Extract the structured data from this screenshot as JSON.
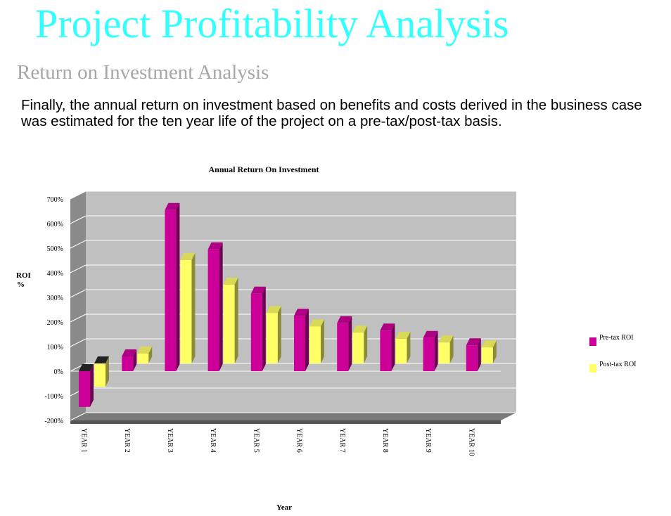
{
  "slide": {
    "title": "Project Profitability Analysis",
    "subtitle": "Return on Investment Analysis",
    "body": "Finally, the annual return on investment based on benefits and costs  derived in the business case was estimated for the ten year life of the project on a pre-tax/post-tax basis."
  },
  "chart_data": {
    "type": "bar",
    "title": "Annual Return On Investment",
    "xlabel": "Year",
    "ylabel": "ROI\n%",
    "categories": [
      "YEAR 1",
      "YEAR 2",
      "YEAR 3",
      "YEAR 4",
      "YEAR 5",
      "YEAR 6",
      "YEAR 7",
      "YEAR 8",
      "YEAR 9",
      "YEAR 10"
    ],
    "series": [
      {
        "name": "Pre-tax ROI",
        "color": "#cc0099",
        "values": [
          -145,
          60,
          655,
          495,
          315,
          225,
          195,
          165,
          135,
          105
        ]
      },
      {
        "name": "Post-tax ROI",
        "color": "#ffff66",
        "values": [
          -95,
          40,
          420,
          320,
          205,
          150,
          125,
          100,
          85,
          65
        ]
      }
    ],
    "yticks": [
      "700%",
      "600%",
      "500%",
      "400%",
      "300%",
      "200%",
      "100%",
      "0%",
      "-100%",
      "-200%"
    ],
    "ylim": [
      -200,
      700
    ],
    "grid": true,
    "legend": "right",
    "style": "3d"
  }
}
